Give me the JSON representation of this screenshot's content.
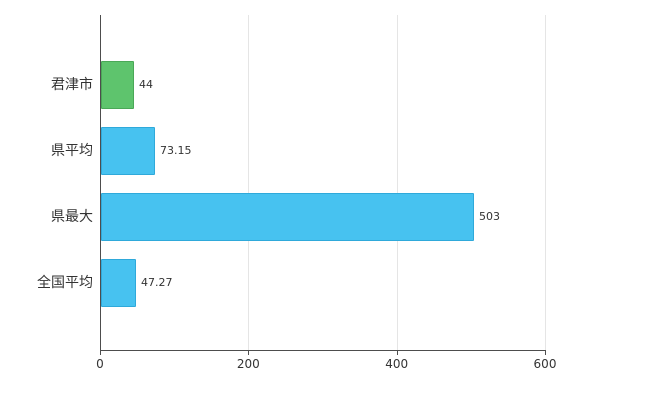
{
  "chart_data": {
    "type": "bar",
    "orientation": "horizontal",
    "title": "",
    "xlabel": "",
    "ylabel": "",
    "categories": [
      "君津市",
      "県平均",
      "県最大",
      "全国平均"
    ],
    "values": [
      44,
      73.15,
      503,
      47.27
    ],
    "value_labels": [
      "44",
      "73.15",
      "503",
      "47.27"
    ],
    "xlim": [
      0,
      600
    ],
    "x_tick_values": [
      0,
      200,
      400,
      600
    ],
    "x_tick_labels": [
      "0",
      "200",
      "400",
      "600"
    ],
    "grid": true,
    "legend": false,
    "bar_colors": [
      "#5ec46d",
      "#47c2f0",
      "#47c2f0",
      "#47c2f0"
    ],
    "bar_border_colors": [
      "#4aa857",
      "#2fa9da",
      "#2fa9da",
      "#2fa9da"
    ],
    "axis_color": "#4d4d4d",
    "grid_color": "#e5e5e5",
    "label_color": "#333333",
    "background_color": "#ffffff"
  }
}
